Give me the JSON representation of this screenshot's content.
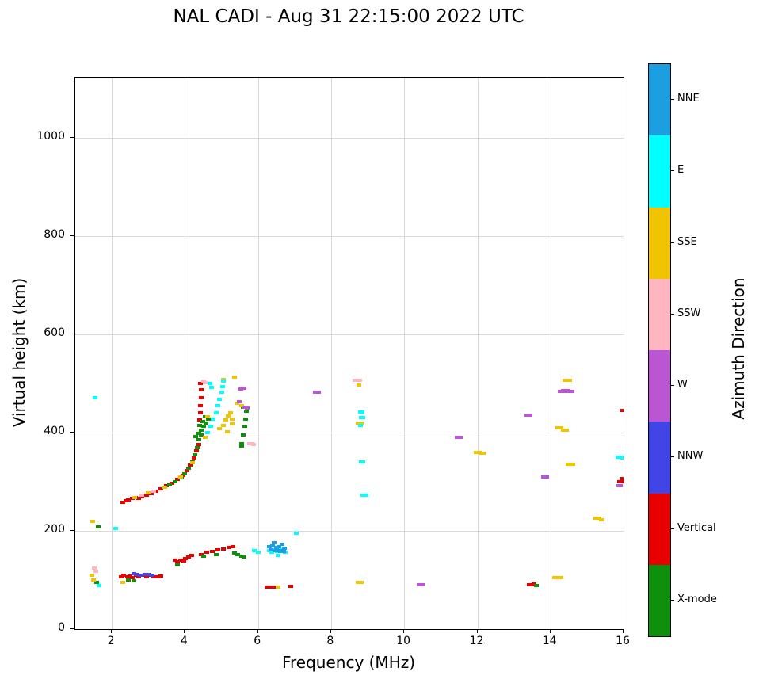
{
  "title": "NAL CADI - Aug 31 22:15:00 2022 UTC",
  "axes": {
    "x_label": "Frequency (MHz)",
    "y_label": "Virtual height (km)",
    "x_ticks": [
      2,
      4,
      6,
      8,
      10,
      12,
      14,
      16
    ],
    "y_ticks": [
      0,
      200,
      400,
      600,
      800,
      1000
    ]
  },
  "colorbar": {
    "label": "Azimuth Direction",
    "entries": [
      {
        "label": "NNE",
        "color": "#1c9fe0"
      },
      {
        "label": "E",
        "color": "#00ffff"
      },
      {
        "label": "SSE",
        "color": "#f0c400"
      },
      {
        "label": "SSW",
        "color": "#ffb6c1"
      },
      {
        "label": "W",
        "color": "#ba55d3"
      },
      {
        "label": "NNW",
        "color": "#4245e5"
      },
      {
        "label": "Vertical",
        "color": "#e60000"
      },
      {
        "label": "X-mode",
        "color": "#0e8f0e"
      }
    ]
  },
  "chart_data": {
    "type": "scatter",
    "title": "NAL CADI - Aug 31 22:15:00 2022 UTC",
    "xlabel": "Frequency (MHz)",
    "ylabel": "Virtual height (km)",
    "xlim": [
      1,
      16
    ],
    "ylim": [
      0,
      1122
    ],
    "grid": true,
    "legend_position": "right-colorbar",
    "series": [
      {
        "name": "Vertical",
        "color": "#e60000",
        "points": [
          [
            2.25,
            107
          ],
          [
            2.33,
            109
          ],
          [
            2.42,
            106
          ],
          [
            2.5,
            108
          ],
          [
            2.58,
            105
          ],
          [
            2.66,
            109
          ],
          [
            2.74,
            107
          ],
          [
            2.82,
            110
          ],
          [
            2.95,
            107
          ],
          [
            3.05,
            109
          ],
          [
            3.15,
            107
          ],
          [
            3.28,
            106
          ],
          [
            3.35,
            108
          ],
          [
            3.72,
            140
          ],
          [
            3.8,
            137
          ],
          [
            3.88,
            141
          ],
          [
            3.96,
            138
          ],
          [
            4.02,
            143
          ],
          [
            4.1,
            147
          ],
          [
            4.18,
            150
          ],
          [
            4.45,
            152
          ],
          [
            4.6,
            156
          ],
          [
            4.75,
            158
          ],
          [
            4.9,
            161
          ],
          [
            5.05,
            163
          ],
          [
            5.2,
            166
          ],
          [
            5.32,
            168
          ],
          [
            6.25,
            85
          ],
          [
            6.38,
            85,
            10
          ],
          [
            6.9,
            87
          ],
          [
            13.45,
            90,
            9
          ],
          [
            13.56,
            92
          ],
          [
            15.95,
            300,
            12
          ],
          [
            16.0,
            306,
            8
          ],
          [
            15.98,
            445
          ],
          [
            2.3,
            258
          ],
          [
            2.38,
            261
          ],
          [
            2.46,
            263
          ],
          [
            2.55,
            266
          ],
          [
            2.64,
            268
          ],
          [
            2.73,
            266
          ],
          [
            2.82,
            270
          ],
          [
            2.95,
            272
          ],
          [
            3.08,
            276
          ],
          [
            3.2,
            280
          ],
          [
            3.35,
            286
          ],
          [
            3.5,
            292
          ],
          [
            3.65,
            297
          ],
          [
            3.8,
            304
          ],
          [
            3.95,
            313
          ],
          [
            4.05,
            322
          ],
          [
            4.15,
            333
          ],
          [
            4.25,
            348
          ],
          [
            4.32,
            362
          ],
          [
            4.38,
            376
          ],
          [
            4.4,
            425
          ],
          [
            4.42,
            440
          ],
          [
            4.43,
            455
          ],
          [
            4.44,
            470
          ],
          [
            4.45,
            487
          ],
          [
            4.43,
            500
          ]
        ]
      },
      {
        "name": "X-mode",
        "color": "#0e8f0e",
        "points": [
          [
            1.58,
            95
          ],
          [
            1.62,
            208
          ],
          [
            2.45,
            100
          ],
          [
            2.6,
            98
          ],
          [
            3.8,
            131
          ],
          [
            4.5,
            148
          ],
          [
            4.85,
            152
          ],
          [
            5.35,
            155
          ],
          [
            5.45,
            151
          ],
          [
            5.55,
            149
          ],
          [
            5.62,
            147
          ],
          [
            13.62,
            88
          ],
          [
            3.42,
            288
          ],
          [
            3.58,
            294
          ],
          [
            3.74,
            300
          ],
          [
            3.9,
            308
          ],
          [
            4.0,
            316
          ],
          [
            4.1,
            327
          ],
          [
            4.2,
            340
          ],
          [
            4.28,
            355
          ],
          [
            4.33,
            370
          ],
          [
            4.38,
            385
          ],
          [
            4.3,
            392
          ],
          [
            4.38,
            398
          ],
          [
            4.45,
            405
          ],
          [
            4.52,
            412
          ],
          [
            4.58,
            420
          ],
          [
            4.64,
            428
          ],
          [
            4.45,
            395
          ],
          [
            4.55,
            432
          ],
          [
            4.4,
            415
          ],
          [
            4.48,
            422
          ],
          [
            5.55,
            378
          ],
          [
            5.6,
            395
          ],
          [
            5.63,
            412
          ],
          [
            5.66,
            428
          ],
          [
            5.68,
            443
          ],
          [
            5.6,
            452
          ],
          [
            5.56,
            373
          ]
        ]
      },
      {
        "name": "SSE",
        "color": "#f0c400",
        "points": [
          [
            1.45,
            110
          ],
          [
            1.5,
            100
          ],
          [
            1.48,
            220
          ],
          [
            2.3,
            95
          ],
          [
            6.55,
            85
          ],
          [
            8.78,
            95,
            10
          ],
          [
            14.2,
            105,
            14
          ],
          [
            15.28,
            225,
            10
          ],
          [
            15.4,
            223
          ],
          [
            2.62,
            268
          ],
          [
            3.0,
            277
          ],
          [
            3.45,
            289
          ],
          [
            3.88,
            309
          ],
          [
            4.2,
            338
          ],
          [
            4.55,
            390
          ],
          [
            4.62,
            432
          ],
          [
            4.95,
            408
          ],
          [
            5.05,
            415
          ],
          [
            5.12,
            425
          ],
          [
            5.18,
            433
          ],
          [
            5.25,
            440
          ],
          [
            5.3,
            418
          ],
          [
            5.15,
            402
          ],
          [
            5.28,
            428
          ],
          [
            5.05,
            508
          ],
          [
            5.35,
            512
          ],
          [
            5.42,
            460
          ],
          [
            5.55,
            455
          ],
          [
            8.78,
            420,
            10
          ],
          [
            8.75,
            497
          ],
          [
            12.0,
            360,
            10
          ],
          [
            12.15,
            358,
            8
          ],
          [
            14.25,
            410,
            10
          ],
          [
            14.4,
            404,
            10
          ],
          [
            14.45,
            507,
            12
          ],
          [
            14.55,
            335,
            12
          ]
        ]
      },
      {
        "name": "SSW",
        "color": "#ffb6c1",
        "points": [
          [
            1.52,
            125
          ],
          [
            1.56,
            118
          ],
          [
            2.82,
            272
          ],
          [
            3.15,
            281
          ],
          [
            4.5,
            504
          ],
          [
            4.56,
            501
          ],
          [
            5.8,
            378,
            9
          ],
          [
            5.88,
            375
          ],
          [
            8.72,
            506,
            12
          ]
        ]
      },
      {
        "name": "W",
        "color": "#ba55d3",
        "points": [
          [
            5.48,
            462
          ],
          [
            5.52,
            488
          ],
          [
            5.58,
            490,
            9
          ],
          [
            5.64,
            452
          ],
          [
            5.7,
            450
          ],
          [
            7.6,
            482,
            10
          ],
          [
            10.45,
            90,
            10
          ],
          [
            11.5,
            390,
            10
          ],
          [
            13.4,
            435,
            10
          ],
          [
            13.85,
            310,
            10
          ],
          [
            14.3,
            484,
            10
          ],
          [
            14.42,
            486,
            12
          ],
          [
            14.55,
            483,
            10
          ],
          [
            15.88,
            292,
            8
          ]
        ]
      },
      {
        "name": "NNW",
        "color": "#4245e5",
        "points": [
          [
            2.6,
            113
          ],
          [
            2.7,
            112
          ],
          [
            2.78,
            109
          ],
          [
            2.9,
            111
          ],
          [
            3.02,
            112
          ],
          [
            3.1,
            110
          ]
        ]
      },
      {
        "name": "E",
        "color": "#00ffff",
        "points": [
          [
            1.55,
            470
          ],
          [
            1.65,
            88
          ],
          [
            2.1,
            205
          ],
          [
            5.9,
            160
          ],
          [
            6.0,
            157
          ],
          [
            6.3,
            160
          ],
          [
            6.38,
            156
          ],
          [
            6.45,
            162
          ],
          [
            6.52,
            158
          ],
          [
            6.6,
            161
          ],
          [
            6.68,
            158
          ],
          [
            6.75,
            156
          ],
          [
            6.55,
            150
          ],
          [
            7.05,
            195
          ],
          [
            4.62,
            400
          ],
          [
            4.7,
            413
          ],
          [
            4.78,
            427
          ],
          [
            4.85,
            440
          ],
          [
            4.9,
            455
          ],
          [
            4.95,
            468
          ],
          [
            5.0,
            482
          ],
          [
            5.03,
            494
          ],
          [
            5.06,
            505
          ],
          [
            4.68,
            500
          ],
          [
            4.72,
            492
          ],
          [
            8.82,
            442,
            8
          ],
          [
            8.85,
            430,
            8
          ],
          [
            8.8,
            415
          ],
          [
            8.85,
            340,
            8
          ],
          [
            8.9,
            273,
            10
          ],
          [
            15.9,
            350,
            10
          ],
          [
            16.0,
            348,
            8
          ]
        ]
      },
      {
        "name": "NNE",
        "color": "#1c9fe0",
        "points": [
          [
            6.3,
            168
          ],
          [
            6.4,
            170
          ],
          [
            6.5,
            166
          ],
          [
            6.58,
            168
          ],
          [
            6.65,
            172
          ],
          [
            6.72,
            165
          ],
          [
            6.45,
            175
          ],
          [
            6.35,
            162
          ],
          [
            6.55,
            160,
            12
          ],
          [
            6.65,
            158,
            10
          ]
        ]
      }
    ]
  }
}
